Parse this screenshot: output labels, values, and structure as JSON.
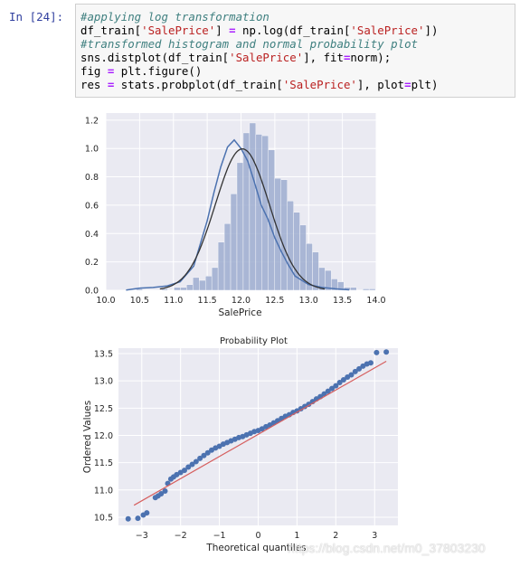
{
  "cell": {
    "prompt": "In  [24]:",
    "code": [
      [
        {
          "t": "#applying log transformation",
          "c": "c-com"
        }
      ],
      [
        {
          "t": "df_train["
        },
        {
          "t": "'SalePrice'",
          "c": "c-str"
        },
        {
          "t": "] "
        },
        {
          "t": "=",
          "c": "c-op"
        },
        {
          "t": " np.log(df_train["
        },
        {
          "t": "'SalePrice'",
          "c": "c-str"
        },
        {
          "t": "])"
        }
      ],
      [
        {
          "t": "#transformed histogram and normal probability plot",
          "c": "c-com"
        }
      ],
      [
        {
          "t": "sns.distplot(df_train["
        },
        {
          "t": "'SalePrice'",
          "c": "c-str"
        },
        {
          "t": "], fit"
        },
        {
          "t": "=",
          "c": "c-op"
        },
        {
          "t": "norm);"
        }
      ],
      [
        {
          "t": "fig "
        },
        {
          "t": "=",
          "c": "c-op"
        },
        {
          "t": " plt.figure()"
        }
      ],
      [
        {
          "t": "res "
        },
        {
          "t": "=",
          "c": "c-op"
        },
        {
          "t": " stats.probplot(df_train["
        },
        {
          "t": "'SalePrice'",
          "c": "c-str"
        },
        {
          "t": "], plot"
        },
        {
          "t": "=",
          "c": "c-op"
        },
        {
          "t": "plt)"
        }
      ]
    ]
  },
  "colors": {
    "plot_bg": "#eaeaf2",
    "grid": "#ffffff",
    "hist": "#98a9cd",
    "kde": "#4c72b0",
    "fit": "#333333",
    "points": "#4c72b0",
    "line": "#d65f5f"
  },
  "chart_data": [
    {
      "type": "bar",
      "xlabel": "SalePrice",
      "xlim": [
        10.0,
        14.0
      ],
      "ylim": [
        0.0,
        1.25
      ],
      "xticks": [
        "10.0",
        "10.5",
        "11.0",
        "11.5",
        "12.0",
        "12.5",
        "13.0",
        "13.5",
        "14.0"
      ],
      "yticks": [
        "0.0",
        "0.2",
        "0.4",
        "0.6",
        "0.8",
        "1.0",
        "1.2"
      ],
      "grid": true,
      "bin_start": 10.45,
      "bin_width": 0.0931,
      "values": [
        0.01,
        0.0,
        0.0,
        0.0,
        0.01,
        0.0,
        0.02,
        0.02,
        0.04,
        0.09,
        0.07,
        0.1,
        0.16,
        0.34,
        0.47,
        0.68,
        0.9,
        1.11,
        1.18,
        1.1,
        1.09,
        0.99,
        0.79,
        0.78,
        0.63,
        0.55,
        0.46,
        0.33,
        0.27,
        0.16,
        0.14,
        0.08,
        0.06,
        0.02,
        0.02,
        0.0,
        0.01,
        0.01
      ],
      "series": [
        {
          "kind": "kde",
          "x": [
            10.3,
            10.5,
            10.7,
            10.9,
            11.1,
            11.3,
            11.5,
            11.6,
            11.7,
            11.8,
            11.9,
            12.0,
            12.1,
            12.2,
            12.3,
            12.4,
            12.5,
            12.6,
            12.7,
            12.8,
            12.9,
            13.0,
            13.2,
            13.4,
            13.6
          ],
          "y": [
            0.002,
            0.015,
            0.02,
            0.03,
            0.06,
            0.17,
            0.49,
            0.69,
            0.87,
            1.01,
            1.06,
            1.0,
            0.91,
            0.76,
            0.6,
            0.5,
            0.37,
            0.27,
            0.18,
            0.1,
            0.07,
            0.04,
            0.02,
            0.01,
            0.003
          ]
        },
        {
          "kind": "normal_fit",
          "mean": 12.02,
          "std": 0.4
        }
      ]
    },
    {
      "type": "scatter",
      "title": "Probability Plot",
      "xlabel": "Theoretical quantiles",
      "ylabel": "Ordered Values",
      "xlim": [
        -3.6,
        3.6
      ],
      "ylim": [
        10.35,
        13.6
      ],
      "xticks": [
        "−3",
        "−2",
        "−1",
        "0",
        "1",
        "2",
        "3"
      ],
      "yticks": [
        "10.5",
        "11.0",
        "11.5",
        "12.0",
        "12.5",
        "13.0",
        "13.5"
      ],
      "grid": true,
      "fit_line": {
        "x": [
          -3.2,
          3.3
        ],
        "y": [
          10.72,
          13.36
        ]
      },
      "points": [
        [
          -3.35,
          10.47
        ],
        [
          -3.1,
          10.48
        ],
        [
          -2.96,
          10.54
        ],
        [
          -2.87,
          10.58
        ],
        [
          -2.65,
          10.86
        ],
        [
          -2.58,
          10.89
        ],
        [
          -2.5,
          10.93
        ],
        [
          -2.4,
          10.98
        ],
        [
          -2.33,
          11.12
        ],
        [
          -2.25,
          11.2
        ],
        [
          -2.18,
          11.24
        ],
        [
          -2.1,
          11.28
        ],
        [
          -2.0,
          11.32
        ],
        [
          -1.9,
          11.36
        ],
        [
          -1.8,
          11.42
        ],
        [
          -1.7,
          11.47
        ],
        [
          -1.6,
          11.52
        ],
        [
          -1.5,
          11.58
        ],
        [
          -1.4,
          11.63
        ],
        [
          -1.3,
          11.68
        ],
        [
          -1.2,
          11.73
        ],
        [
          -1.1,
          11.77
        ],
        [
          -1.0,
          11.8
        ],
        [
          -0.9,
          11.84
        ],
        [
          -0.8,
          11.87
        ],
        [
          -0.7,
          11.9
        ],
        [
          -0.6,
          11.93
        ],
        [
          -0.5,
          11.96
        ],
        [
          -0.4,
          11.98
        ],
        [
          -0.3,
          12.01
        ],
        [
          -0.2,
          12.04
        ],
        [
          -0.1,
          12.07
        ],
        [
          0.0,
          12.09
        ],
        [
          0.1,
          12.12
        ],
        [
          0.2,
          12.16
        ],
        [
          0.3,
          12.19
        ],
        [
          0.4,
          12.23
        ],
        [
          0.5,
          12.27
        ],
        [
          0.6,
          12.31
        ],
        [
          0.7,
          12.35
        ],
        [
          0.8,
          12.38
        ],
        [
          0.9,
          12.42
        ],
        [
          1.0,
          12.45
        ],
        [
          1.1,
          12.49
        ],
        [
          1.2,
          12.53
        ],
        [
          1.3,
          12.57
        ],
        [
          1.4,
          12.62
        ],
        [
          1.5,
          12.67
        ],
        [
          1.6,
          12.71
        ],
        [
          1.7,
          12.76
        ],
        [
          1.8,
          12.81
        ],
        [
          1.9,
          12.86
        ],
        [
          2.0,
          12.91
        ],
        [
          2.1,
          12.97
        ],
        [
          2.2,
          13.02
        ],
        [
          2.3,
          13.07
        ],
        [
          2.4,
          13.11
        ],
        [
          2.5,
          13.17
        ],
        [
          2.6,
          13.22
        ],
        [
          2.7,
          13.27
        ],
        [
          2.8,
          13.31
        ],
        [
          2.9,
          13.33
        ],
        [
          3.05,
          13.52
        ],
        [
          3.3,
          13.53
        ]
      ]
    }
  ],
  "watermark": "https://blog.csdn.net/m0_37803230"
}
